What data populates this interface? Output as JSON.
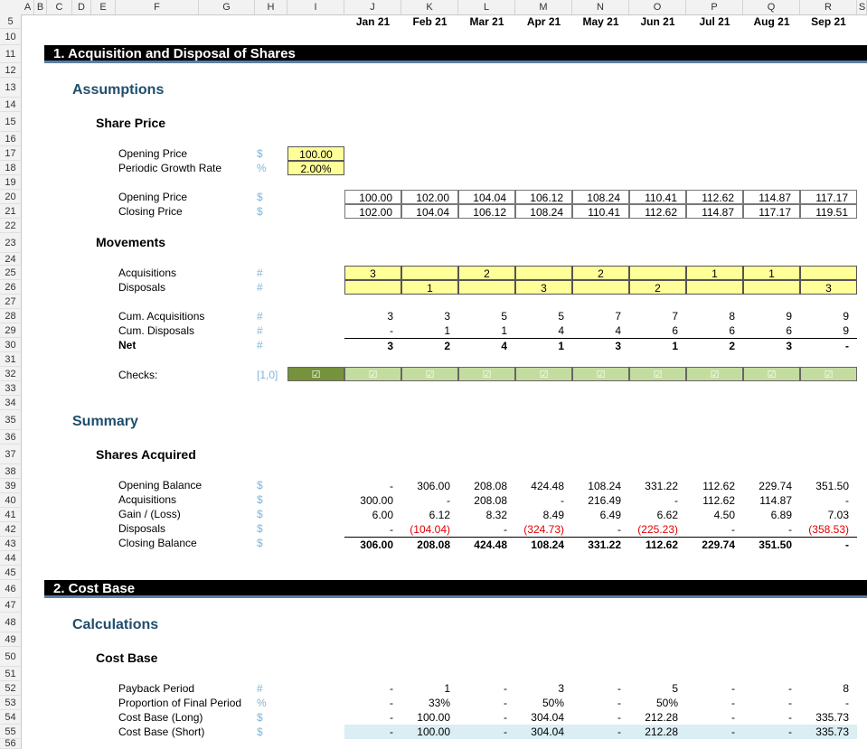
{
  "columns": [
    "A",
    "B",
    "C",
    "D",
    "E",
    "F",
    "G",
    "H",
    "I",
    "J",
    "K",
    "L",
    "M",
    "N",
    "O",
    "P",
    "Q",
    "R",
    "S"
  ],
  "rows": [
    "5",
    "10",
    "11",
    "12",
    "13",
    "14",
    "15",
    "16",
    "17",
    "18",
    "19",
    "20",
    "21",
    "22",
    "23",
    "24",
    "25",
    "26",
    "27",
    "28",
    "29",
    "30",
    "31",
    "32",
    "33",
    "34",
    "35",
    "36",
    "37",
    "38",
    "39",
    "40",
    "41",
    "42",
    "43",
    "44",
    "45",
    "46",
    "47",
    "48",
    "49",
    "50",
    "51",
    "52",
    "53",
    "54",
    "55",
    "56"
  ],
  "months": [
    "Jan 21",
    "Feb 21",
    "Mar 21",
    "Apr 21",
    "May 21",
    "Jun 21",
    "Jul 21",
    "Aug 21",
    "Sep 21"
  ],
  "section1": {
    "title": "1. Acquisition and Disposal of Shares",
    "assumptions": "Assumptions",
    "share_price": {
      "heading": "Share Price",
      "opening_price_label": "Opening Price",
      "opening_price_unit": "$",
      "opening_price_value": "100.00",
      "growth_label": "Periodic Growth Rate",
      "growth_unit": "%",
      "growth_value": "2.00%",
      "opening_row_label": "Opening Price",
      "opening_row_unit": "$",
      "opening_row": [
        "100.00",
        "102.00",
        "104.04",
        "106.12",
        "108.24",
        "110.41",
        "112.62",
        "114.87",
        "117.17"
      ],
      "closing_row_label": "Closing Price",
      "closing_row_unit": "$",
      "closing_row": [
        "102.00",
        "104.04",
        "106.12",
        "108.24",
        "110.41",
        "112.62",
        "114.87",
        "117.17",
        "119.51"
      ]
    },
    "movements": {
      "heading": "Movements",
      "acq_label": "Acquisitions",
      "acq_unit": "#",
      "acq": [
        "3",
        "",
        "2",
        "",
        "2",
        "",
        "1",
        "1",
        ""
      ],
      "disp_label": "Disposals",
      "disp_unit": "#",
      "disp": [
        "",
        "1",
        "",
        "3",
        "",
        "2",
        "",
        "",
        "3"
      ],
      "cum_acq_label": "Cum. Acquisitions",
      "cum_acq_unit": "#",
      "cum_acq": [
        "3",
        "3",
        "5",
        "5",
        "7",
        "7",
        "8",
        "9",
        "9"
      ],
      "cum_disp_label": "Cum. Disposals",
      "cum_disp_unit": "#",
      "cum_disp": [
        "-",
        "1",
        "1",
        "4",
        "4",
        "6",
        "6",
        "6",
        "9"
      ],
      "net_label": "Net",
      "net_unit": "#",
      "net": [
        "3",
        "2",
        "4",
        "1",
        "3",
        "1",
        "2",
        "3",
        "-"
      ],
      "checks_label": "Checks:",
      "checks_unit": "[1,0]",
      "check_glyph": "☑"
    },
    "summary": {
      "heading": "Summary",
      "sub": "Shares Acquired",
      "opening_label": "Opening Balance",
      "opening_unit": "$",
      "opening": [
        "-",
        "306.00",
        "208.08",
        "424.48",
        "108.24",
        "331.22",
        "112.62",
        "229.74",
        "351.50"
      ],
      "acq_label": "Acquisitions",
      "acq_unit": "$",
      "acq": [
        "300.00",
        "-",
        "208.08",
        "-",
        "216.49",
        "-",
        "112.62",
        "114.87",
        "-"
      ],
      "gain_label": "Gain / (Loss)",
      "gain_unit": "$",
      "gain": [
        "6.00",
        "6.12",
        "8.32",
        "8.49",
        "6.49",
        "6.62",
        "4.50",
        "6.89",
        "7.03"
      ],
      "disp_label": "Disposals",
      "disp_unit": "$",
      "disp": [
        "-",
        "(104.04)",
        "-",
        "(324.73)",
        "-",
        "(225.23)",
        "-",
        "-",
        "(358.53)"
      ],
      "closing_label": "Closing Balance",
      "closing_unit": "$",
      "closing": [
        "306.00",
        "208.08",
        "424.48",
        "108.24",
        "331.22",
        "112.62",
        "229.74",
        "351.50",
        "-"
      ]
    }
  },
  "section2": {
    "title": "2. Cost Base",
    "calculations": "Calculations",
    "sub": "Cost Base",
    "payback_label": "Payback Period",
    "payback_unit": "#",
    "payback": [
      "-",
      "1",
      "-",
      "3",
      "-",
      "5",
      "-",
      "-",
      "8"
    ],
    "prop_label": "Proportion of Final Period",
    "prop_unit": "%",
    "prop": [
      "-",
      "33%",
      "-",
      "50%",
      "-",
      "50%",
      "-",
      "-",
      "-"
    ],
    "long_label": "Cost Base (Long)",
    "long_unit": "$",
    "long": [
      "-",
      "100.00",
      "-",
      "304.04",
      "-",
      "212.28",
      "-",
      "-",
      "335.73"
    ],
    "short_label": "Cost Base (Short)",
    "short_unit": "$",
    "short": [
      "-",
      "100.00",
      "-",
      "304.04",
      "-",
      "212.28",
      "-",
      "-",
      "335.73"
    ]
  },
  "colors": {
    "input_yellow": "#ffff99",
    "check_green": "#c4dca0",
    "check_dark": "#76923c",
    "header_blue": "#1f4e6b",
    "negative_red": "#e00000"
  }
}
